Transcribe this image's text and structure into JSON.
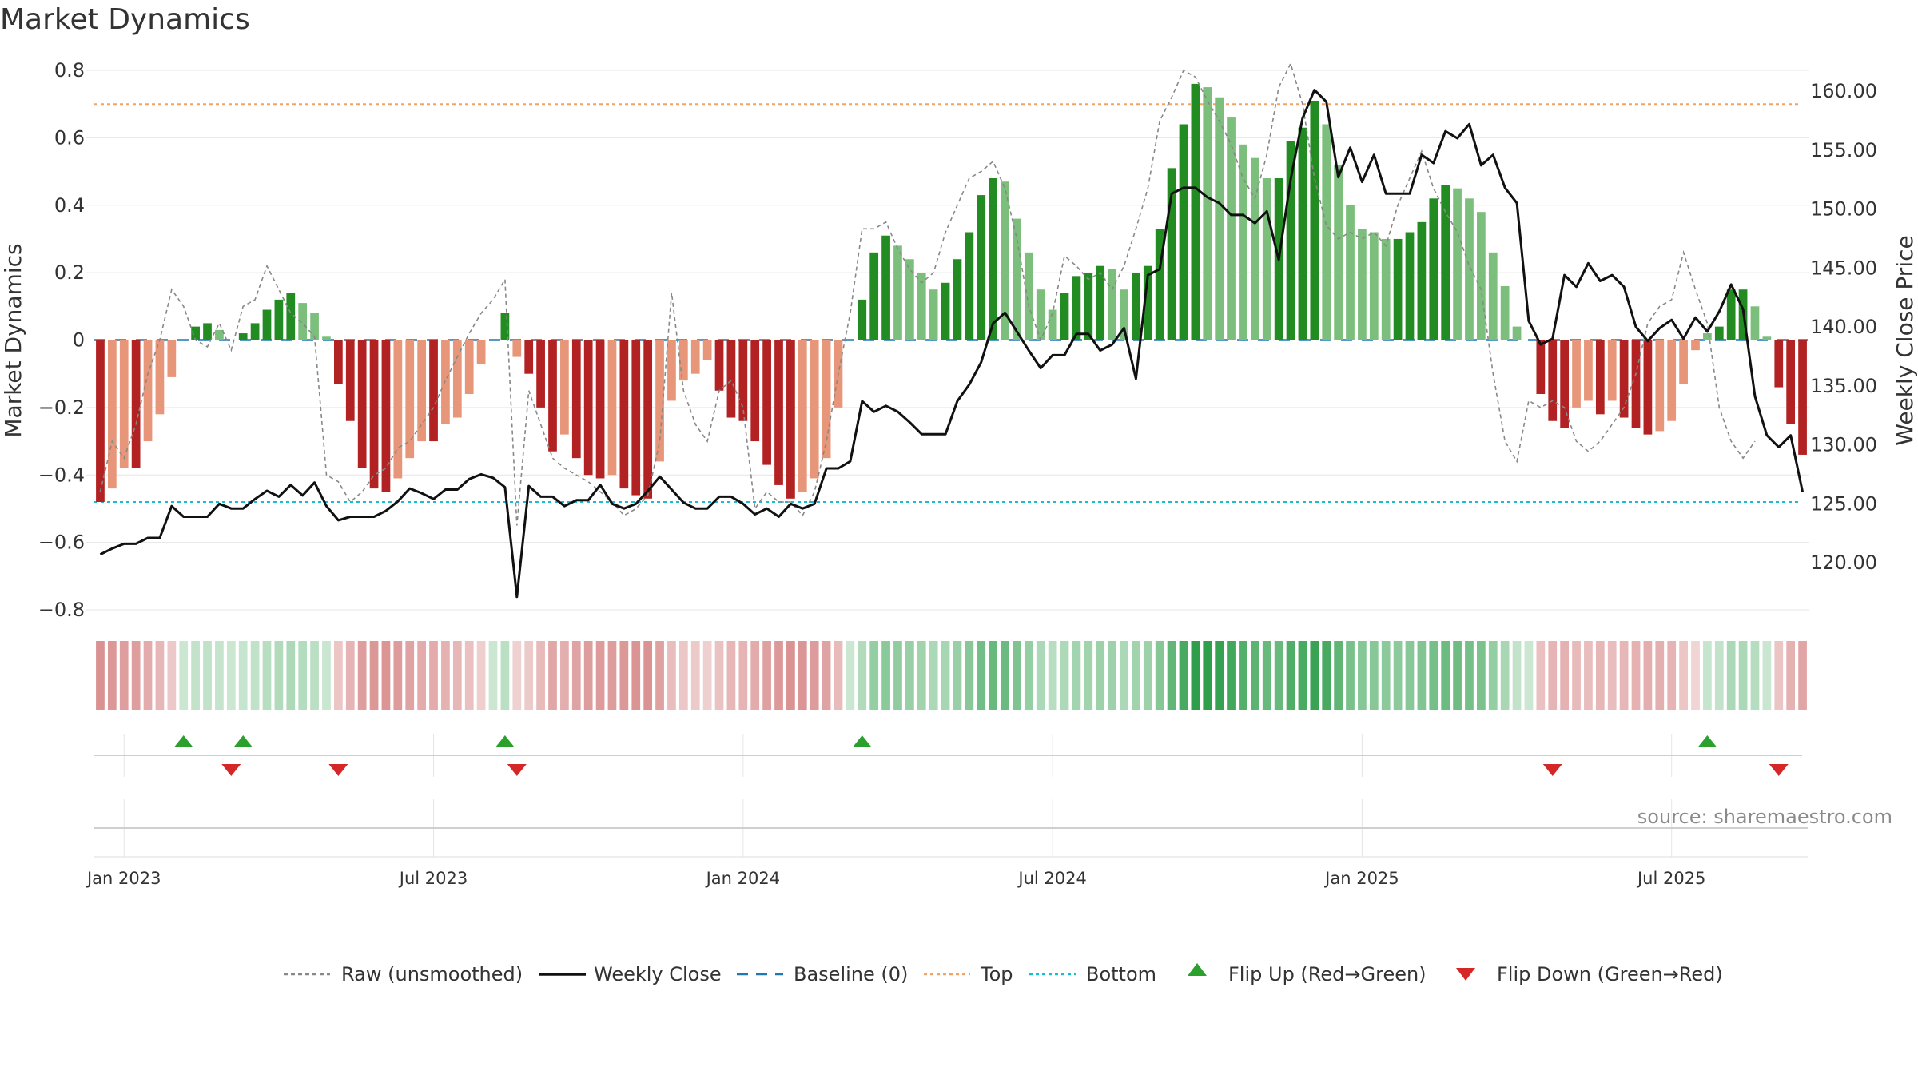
{
  "title": "Market Dynamics",
  "source": "source: sharemaestro.com",
  "colors": {
    "strong_green": "#228b22",
    "light_green": "#7cbf7c",
    "strong_red": "#b22222",
    "light_red": "#e8967a",
    "top_line": "#f4a460",
    "bottom_line": "#17becf",
    "baseline": "#1f77b4",
    "flip_up": "#2ca02c",
    "flip_down": "#d62728"
  },
  "chart_data": {
    "type": "bar",
    "title": "Market Dynamics",
    "ylabel": "Market Dynamics",
    "ylabel_right": "Weekly Close Price",
    "ylim": [
      -0.8,
      0.8
    ],
    "ylim_right": [
      115,
      162
    ],
    "y_ticks": [
      "0.8",
      "0.6",
      "0.4",
      "0.2",
      "0",
      "−0.2",
      "−0.4",
      "−0.6",
      "−0.8"
    ],
    "y_tick_values": [
      0.8,
      0.6,
      0.4,
      0.2,
      0,
      -0.2,
      -0.4,
      -0.6,
      -0.8
    ],
    "y_right_ticks": [
      "160.00",
      "155.00",
      "150.00",
      "145.00",
      "140.00",
      "135.00",
      "130.00",
      "125.00",
      "120.00"
    ],
    "y_right_tick_values": [
      160,
      155,
      150,
      145,
      140,
      135,
      130,
      125,
      120
    ],
    "x_ticks": [
      "Jan 2023",
      "Jul 2023",
      "Jan 2024",
      "Jul 2024",
      "Jan 2025",
      "Jul 2025"
    ],
    "x_tick_weeks": [
      2,
      28,
      54,
      80,
      106,
      132
    ],
    "top_level": 0.7,
    "bottom_level": -0.48,
    "grid": true,
    "legend_position": "bottom",
    "series": [
      {
        "name": "Raw (unsmoothed)",
        "kind": "line-dashed"
      },
      {
        "name": "Weekly Close",
        "kind": "line"
      },
      {
        "name": "Baseline (0)",
        "kind": "line-dashed"
      },
      {
        "name": "Top",
        "kind": "line-dotted"
      },
      {
        "name": "Bottom",
        "kind": "line-dotted"
      },
      {
        "name": "Flip Up (Red→Green)",
        "kind": "marker-up"
      },
      {
        "name": "Flip Down (Green→Red)",
        "kind": "marker-down"
      }
    ],
    "dynamics": [
      -0.48,
      -0.44,
      -0.38,
      -0.38,
      -0.3,
      -0.22,
      -0.11,
      0.0,
      0.04,
      0.05,
      0.03,
      0.0,
      0.02,
      0.05,
      0.09,
      0.12,
      0.14,
      0.11,
      0.08,
      0.01,
      -0.13,
      -0.24,
      -0.38,
      -0.44,
      -0.45,
      -0.41,
      -0.35,
      -0.3,
      -0.3,
      -0.25,
      -0.23,
      -0.16,
      -0.07,
      0.0,
      0.08,
      -0.05,
      -0.1,
      -0.2,
      -0.33,
      -0.28,
      -0.35,
      -0.4,
      -0.41,
      -0.4,
      -0.44,
      -0.46,
      -0.47,
      -0.36,
      -0.18,
      -0.12,
      -0.1,
      -0.06,
      -0.15,
      -0.23,
      -0.24,
      -0.3,
      -0.37,
      -0.43,
      -0.47,
      -0.45,
      -0.41,
      -0.35,
      -0.2,
      0.0,
      0.12,
      0.26,
      0.31,
      0.28,
      0.24,
      0.2,
      0.15,
      0.17,
      0.24,
      0.32,
      0.43,
      0.48,
      0.47,
      0.36,
      0.26,
      0.15,
      0.09,
      0.14,
      0.19,
      0.2,
      0.22,
      0.21,
      0.15,
      0.2,
      0.22,
      0.33,
      0.51,
      0.64,
      0.76,
      0.75,
      0.72,
      0.66,
      0.58,
      0.54,
      0.48,
      0.48,
      0.59,
      0.63,
      0.71,
      0.64,
      0.52,
      0.4,
      0.33,
      0.32,
      0.3,
      0.3,
      0.32,
      0.35,
      0.42,
      0.46,
      0.45,
      0.42,
      0.38,
      0.26,
      0.16,
      0.04,
      0.0,
      -0.16,
      -0.24,
      -0.26,
      -0.2,
      -0.18,
      -0.22,
      -0.18,
      -0.23,
      -0.26,
      -0.28,
      -0.27,
      -0.24,
      -0.13,
      -0.03,
      0.02,
      0.04,
      0.15,
      0.15,
      0.1,
      0.01,
      -0.14,
      -0.25,
      -0.34
    ],
    "raw": [
      -0.45,
      -0.3,
      -0.35,
      -0.25,
      -0.1,
      0.0,
      0.15,
      0.1,
      0.0,
      -0.02,
      0.05,
      -0.03,
      0.1,
      0.12,
      0.22,
      0.15,
      0.08,
      0.05,
      0.01,
      -0.4,
      -0.42,
      -0.48,
      -0.45,
      -0.4,
      -0.38,
      -0.32,
      -0.3,
      -0.25,
      -0.2,
      -0.12,
      -0.05,
      0.02,
      0.08,
      0.12,
      0.18,
      -0.55,
      -0.15,
      -0.25,
      -0.35,
      -0.38,
      -0.4,
      -0.42,
      -0.45,
      -0.48,
      -0.52,
      -0.5,
      -0.46,
      -0.3,
      0.14,
      -0.15,
      -0.25,
      -0.3,
      -0.15,
      -0.12,
      -0.2,
      -0.5,
      -0.45,
      -0.48,
      -0.48,
      -0.52,
      -0.45,
      -0.3,
      -0.1,
      0.08,
      0.33,
      0.33,
      0.35,
      0.27,
      0.21,
      0.17,
      0.2,
      0.32,
      0.4,
      0.48,
      0.5,
      0.53,
      0.45,
      0.3,
      0.1,
      0.0,
      0.08,
      0.25,
      0.22,
      0.18,
      0.2,
      0.15,
      0.22,
      0.33,
      0.45,
      0.65,
      0.72,
      0.8,
      0.78,
      0.71,
      0.65,
      0.58,
      0.48,
      0.42,
      0.55,
      0.75,
      0.82,
      0.7,
      0.48,
      0.34,
      0.3,
      0.32,
      0.3,
      0.32,
      0.28,
      0.4,
      0.48,
      0.56,
      0.45,
      0.38,
      0.32,
      0.22,
      0.15,
      -0.1,
      -0.3,
      -0.36,
      -0.18,
      -0.2,
      -0.18,
      -0.2,
      -0.3,
      -0.33,
      -0.3,
      -0.25,
      -0.2,
      -0.1,
      0.05,
      0.1,
      0.12,
      0.26,
      0.15,
      0.05,
      -0.2,
      -0.3,
      -0.35,
      -0.3
    ],
    "close": [
      120.7,
      121.2,
      121.6,
      121.6,
      122.1,
      122.1,
      124.8,
      123.9,
      123.9,
      123.9,
      125.0,
      124.6,
      124.6,
      125.4,
      126.1,
      125.6,
      126.6,
      125.7,
      126.8,
      124.8,
      123.6,
      123.9,
      123.9,
      123.9,
      124.4,
      125.2,
      126.3,
      125.9,
      125.4,
      126.2,
      126.2,
      127.1,
      127.5,
      127.2,
      126.4,
      117.1,
      126.5,
      125.6,
      125.6,
      124.8,
      125.3,
      125.3,
      126.6,
      125.0,
      124.6,
      125.0,
      126.1,
      127.3,
      126.2,
      125.1,
      124.6,
      124.6,
      125.6,
      125.6,
      125.0,
      124.1,
      124.6,
      123.9,
      125.0,
      124.6,
      125.0,
      128.0,
      128.0,
      128.6,
      133.7,
      132.8,
      133.3,
      132.8,
      131.9,
      130.9,
      130.9,
      130.9,
      133.7,
      135.1,
      137.0,
      140.3,
      141.2,
      139.6,
      138.0,
      136.5,
      137.6,
      137.6,
      139.4,
      139.4,
      138.0,
      138.5,
      139.9,
      135.6,
      144.4,
      144.9,
      151.3,
      151.8,
      151.8,
      151.0,
      150.5,
      149.5,
      149.5,
      148.8,
      149.8,
      145.7,
      152.5,
      157.7,
      160.1,
      159.1,
      152.7,
      155.2,
      152.3,
      154.6,
      151.3,
      151.3,
      151.3,
      154.6,
      153.9,
      156.6,
      156.0,
      157.2,
      153.7,
      154.6,
      151.8,
      150.5,
      140.5,
      138.5,
      139.0,
      144.4,
      143.4,
      145.4,
      143.9,
      144.4,
      143.4,
      140.0,
      138.8,
      139.9,
      140.6,
      139.0,
      140.8,
      139.6,
      141.3,
      143.6,
      141.5,
      134.1,
      130.8,
      129.8,
      130.8,
      126.0
    ],
    "flip_up": [
      7,
      12,
      34,
      64,
      135
    ],
    "flip_down": [
      11,
      20,
      35,
      122,
      141
    ]
  }
}
